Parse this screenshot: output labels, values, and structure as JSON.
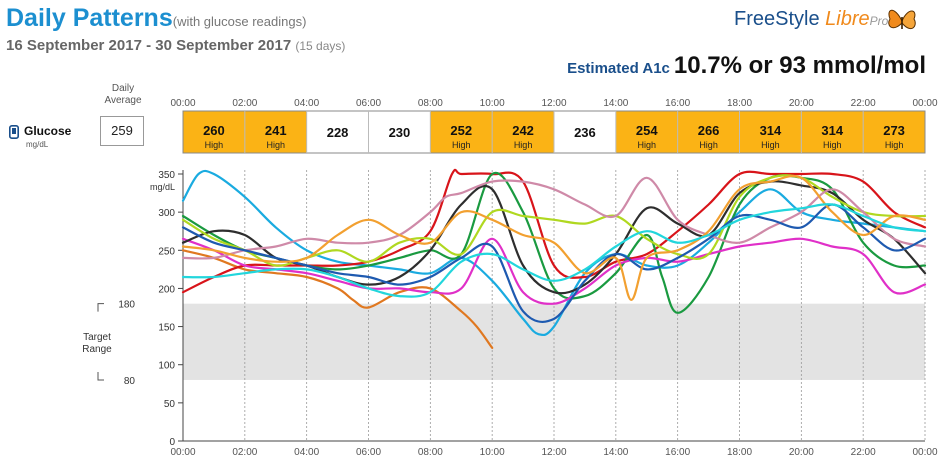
{
  "header": {
    "title": "Daily Patterns",
    "subtitle": "(with glucose readings)",
    "date_range": "16 September 2017 - 30 September 2017",
    "days": "(15 days)",
    "logo_freestyle": "FreeStyle",
    "logo_libre": "Libre",
    "logo_pro": "Pro",
    "a1c_label": "Estimated A1c",
    "a1c_value": "10.7% or 93 mmol/mol"
  },
  "summary": {
    "daily_average_header": [
      "Daily",
      "Average"
    ],
    "glucose_label": "Glucose",
    "unit": "mg/dL",
    "daily_average": "259",
    "time_labels": [
      "00:00",
      "02:00",
      "04:00",
      "06:00",
      "08:00",
      "10:00",
      "12:00",
      "14:00",
      "16:00",
      "18:00",
      "20:00",
      "22:00",
      "00:00"
    ],
    "blocks": [
      {
        "value": "260",
        "note": "High",
        "high": true
      },
      {
        "value": "241",
        "note": "High",
        "high": true
      },
      {
        "value": "228",
        "note": "",
        "high": false
      },
      {
        "value": "230",
        "note": "",
        "high": false
      },
      {
        "value": "252",
        "note": "High",
        "high": true
      },
      {
        "value": "242",
        "note": "High",
        "high": true
      },
      {
        "value": "236",
        "note": "",
        "high": false
      },
      {
        "value": "254",
        "note": "High",
        "high": true
      },
      {
        "value": "266",
        "note": "High",
        "high": true
      },
      {
        "value": "314",
        "note": "High",
        "high": true
      },
      {
        "value": "314",
        "note": "High",
        "high": true
      },
      {
        "value": "273",
        "note": "High",
        "high": true
      }
    ]
  },
  "colors": {
    "accent_blue": "#1c8fd0",
    "high_block": "#fbb315",
    "target_band": "#e3e3e3"
  },
  "chart_data": {
    "type": "line",
    "ylabel": "mg/dL",
    "xlim": [
      "00:00",
      "24:00"
    ],
    "ylim": [
      0,
      350
    ],
    "yticks": [
      0,
      50,
      100,
      150,
      200,
      250,
      300,
      350
    ],
    "xticks": [
      "00:00",
      "02:00",
      "04:00",
      "06:00",
      "08:00",
      "10:00",
      "12:00",
      "14:00",
      "16:00",
      "18:00",
      "20:00",
      "22:00",
      "00:00"
    ],
    "target_range": {
      "label": [
        "Target",
        "Range"
      ],
      "low": 80,
      "high": 180,
      "low_label": "80",
      "high_label": "180"
    },
    "grid": "vertical dashed every 2 hours",
    "series": [
      {
        "color": "#1aabe0",
        "x": [
          0,
          0.5,
          1,
          2,
          3,
          4,
          5,
          6,
          7,
          8,
          9,
          10,
          11,
          11.5,
          12,
          13,
          14,
          15,
          16,
          17,
          18,
          19,
          20,
          21,
          22,
          23,
          24
        ],
        "y": [
          315,
          350,
          350,
          320,
          280,
          250,
          235,
          230,
          225,
          220,
          240,
          210,
          160,
          140,
          150,
          220,
          245,
          230,
          230,
          260,
          300,
          330,
          300,
          290,
          285,
          280,
          275
        ]
      },
      {
        "color": "#e07820",
        "x": [
          0,
          1,
          2,
          3,
          4,
          5,
          5.5,
          6,
          7,
          8,
          9,
          9.5,
          10
        ],
        "y": [
          250,
          240,
          225,
          220,
          215,
          200,
          185,
          175,
          195,
          200,
          170,
          150,
          122
        ]
      },
      {
        "color": "#d8141a",
        "x": [
          0,
          1,
          2,
          3,
          4,
          5,
          6,
          7,
          8,
          8.7,
          9,
          10,
          11,
          12,
          13,
          14,
          15,
          16,
          17,
          18,
          19,
          20,
          21,
          22,
          23,
          24
        ],
        "y": [
          195,
          215,
          230,
          230,
          230,
          230,
          235,
          250,
          275,
          350,
          350,
          350,
          340,
          230,
          215,
          235,
          245,
          275,
          310,
          350,
          350,
          350,
          350,
          340,
          300,
          280
        ]
      },
      {
        "color": "#1a9a40",
        "x": [
          0,
          1,
          2,
          3,
          4,
          5,
          6,
          7,
          8,
          9,
          10,
          11,
          12,
          13,
          14,
          15,
          15.5,
          16,
          17,
          18,
          19,
          20,
          21,
          22,
          23,
          24
        ],
        "y": [
          295,
          270,
          250,
          240,
          230,
          225,
          230,
          240,
          250,
          245,
          350,
          300,
          200,
          190,
          220,
          270,
          215,
          168,
          215,
          310,
          345,
          345,
          330,
          260,
          230,
          230
        ]
      },
      {
        "color": "#e030c8",
        "x": [
          0,
          1,
          2,
          3,
          4,
          5,
          6,
          7,
          8,
          9,
          10,
          11,
          12,
          13,
          14,
          15,
          16,
          17,
          18,
          19,
          20,
          21,
          22,
          23,
          24
        ],
        "y": [
          265,
          250,
          230,
          225,
          220,
          210,
          200,
          200,
          195,
          200,
          265,
          195,
          180,
          200,
          230,
          240,
          235,
          245,
          255,
          260,
          265,
          255,
          245,
          195,
          205
        ]
      },
      {
        "color": "#2e2e2e",
        "x": [
          0,
          1,
          2,
          3,
          4,
          5,
          6,
          7,
          8,
          9,
          10,
          11,
          12,
          13,
          14,
          15,
          16,
          17,
          18,
          19,
          20,
          21,
          22,
          23,
          24
        ],
        "y": [
          260,
          275,
          270,
          240,
          230,
          215,
          205,
          215,
          250,
          310,
          330,
          230,
          195,
          205,
          245,
          305,
          285,
          270,
          325,
          340,
          335,
          325,
          290,
          265,
          220
        ]
      },
      {
        "color": "#b0d820",
        "x": [
          0,
          1,
          2,
          3,
          4,
          5,
          6,
          7,
          8,
          9,
          10,
          11,
          12,
          13,
          14,
          15,
          16,
          17,
          18,
          19,
          20,
          21,
          22,
          23,
          24
        ],
        "y": [
          290,
          265,
          250,
          230,
          240,
          250,
          235,
          260,
          265,
          245,
          300,
          295,
          290,
          285,
          295,
          265,
          245,
          245,
          320,
          345,
          345,
          320,
          300,
          295,
          295
        ]
      },
      {
        "color": "#cf8aa8",
        "x": [
          0,
          1,
          2,
          3,
          4,
          5,
          6,
          7,
          8,
          8.5,
          9,
          10,
          11,
          12,
          13,
          14,
          15,
          16,
          17,
          18,
          19,
          20,
          21,
          22,
          23,
          24
        ],
        "y": [
          240,
          240,
          250,
          255,
          265,
          260,
          260,
          270,
          300,
          320,
          325,
          340,
          340,
          330,
          310,
          295,
          345,
          290,
          270,
          260,
          280,
          300,
          330,
          300,
          265,
          255
        ]
      },
      {
        "color": "#1e5ab0",
        "x": [
          0,
          1,
          2,
          3,
          4,
          5,
          6,
          7,
          8,
          9,
          10,
          11,
          12,
          13,
          14,
          15,
          16,
          17,
          18,
          19,
          20,
          21,
          22,
          23,
          24
        ],
        "y": [
          280,
          260,
          250,
          240,
          230,
          220,
          215,
          205,
          215,
          240,
          255,
          170,
          160,
          210,
          245,
          225,
          240,
          265,
          295,
          290,
          280,
          310,
          280,
          250,
          265
        ]
      },
      {
        "color": "#f2a030",
        "x": [
          0,
          1,
          2,
          3,
          4,
          5,
          6,
          7,
          8,
          9,
          10,
          11,
          12,
          13,
          14,
          14.5,
          15,
          16,
          17,
          18,
          19,
          20,
          21,
          22,
          23,
          24
        ],
        "y": [
          255,
          250,
          240,
          235,
          240,
          270,
          290,
          270,
          260,
          300,
          290,
          270,
          260,
          220,
          240,
          185,
          240,
          250,
          275,
          330,
          340,
          345,
          300,
          270,
          295,
          290
        ]
      },
      {
        "color": "#22d6dc",
        "x": [
          0,
          1,
          2,
          3,
          4,
          5,
          6,
          7,
          8,
          9,
          10,
          11,
          12,
          13,
          14,
          15,
          16,
          17,
          18,
          19,
          20,
          21,
          22,
          23,
          24
        ],
        "y": [
          215,
          215,
          220,
          225,
          225,
          215,
          200,
          190,
          195,
          235,
          245,
          225,
          210,
          225,
          255,
          275,
          260,
          270,
          290,
          300,
          305,
          310,
          295,
          280,
          275
        ]
      }
    ]
  }
}
